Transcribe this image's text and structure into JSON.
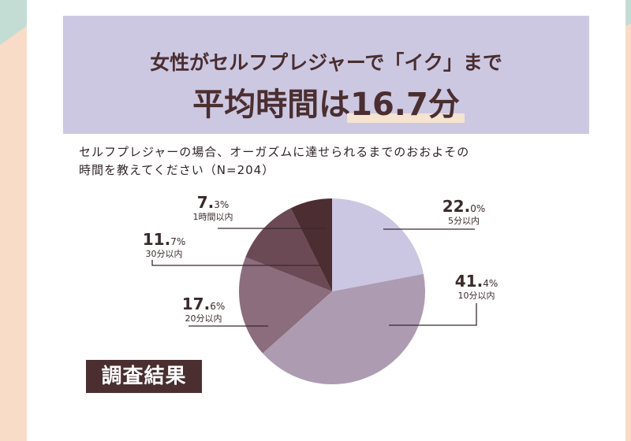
{
  "title": {
    "line1": "女性がセルフプレジャーで「イク」まで",
    "line2_prefix": "平均時間は",
    "line2_highlight": "16.7分"
  },
  "question": {
    "line1": "セルフプレジャーの場合、オーガズムに達せられるまでのおおよその",
    "line2": "時間を教えてください（N=204）"
  },
  "badge": {
    "label": "調査結果"
  },
  "labels": [
    {
      "int": "22.",
      "dec": "0%",
      "cat": "5分以内"
    },
    {
      "int": "41.",
      "dec": "4%",
      "cat": "10分以内"
    },
    {
      "int": "17.",
      "dec": "6%",
      "cat": "20分以内"
    },
    {
      "int": "11.",
      "dec": "7%",
      "cat": "30分以内"
    },
    {
      "int": "7.",
      "dec": "3%",
      "cat": "1時間以内"
    }
  ],
  "colors": {
    "title_bg": "#cdc8e2",
    "highlight": "#f5e4d0",
    "text_dark": "#4a2e30",
    "strip_peach": "#f8dcc8",
    "strip_mint": "#c3ddd5"
  },
  "chart_data": {
    "type": "pie",
    "title": "女性がセルフプレジャーで「イク」まで 平均時間は16.7分",
    "subtitle": "セルフプレジャーの場合、オーガズムに達せられるまでのおおよその時間を教えてください（N=204）",
    "categories": [
      "5分以内",
      "10分以内",
      "20分以内",
      "30分以内",
      "1時間以内"
    ],
    "values": [
      22.0,
      41.4,
      17.6,
      11.7,
      7.3
    ],
    "unit": "%",
    "start_angle": "12 o'clock, clockwise",
    "colors": [
      "#cbc6e1",
      "#ad9cb1",
      "#8b6d7e",
      "#6b4a55",
      "#4c2d31"
    ],
    "legend": "none (leader-line labels)"
  }
}
